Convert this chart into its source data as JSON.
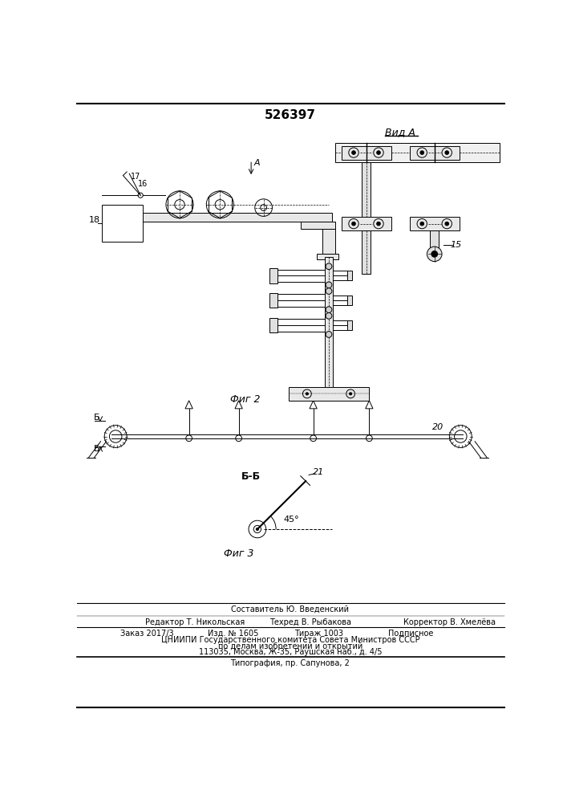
{
  "patent_number": "526397",
  "background_color": "#ffffff",
  "line_color": "#000000",
  "fig_width": 7.07,
  "fig_height": 10.0,
  "dpi": 100,
  "title": "526397",
  "vid_a_label": "Вид А",
  "fig2_label": "Фиг 2",
  "fig3_label": "Фиг 3",
  "label_15": "15",
  "label_16": "16",
  "label_17": "17",
  "label_18": "18",
  "label_20": "20",
  "label_21": "21",
  "angle_label": "45°",
  "footer_line1": "Составитель Ю. Введенский",
  "footer_line2_left": "Редактор Т. Никольская",
  "footer_line2_mid": "Техред В. Рыбакова",
  "footer_line2_right": "Корректор В. Хмелёва",
  "footer_line3_1": "Заказ 2017/3",
  "footer_line3_2": "Изд. № 1605",
  "footer_line3_3": "Тираж 1003",
  "footer_line3_4": "Подписное",
  "footer_line4": "ЦНИИПИ Государственного комитета Совета Министров СССР",
  "footer_line5": "по делам изобретений и открытий",
  "footer_line6": "113035, Москва, Ж-35, Раушская наб., д. 4/5",
  "footer_line7": "Типография, пр. Сапунова, 2"
}
